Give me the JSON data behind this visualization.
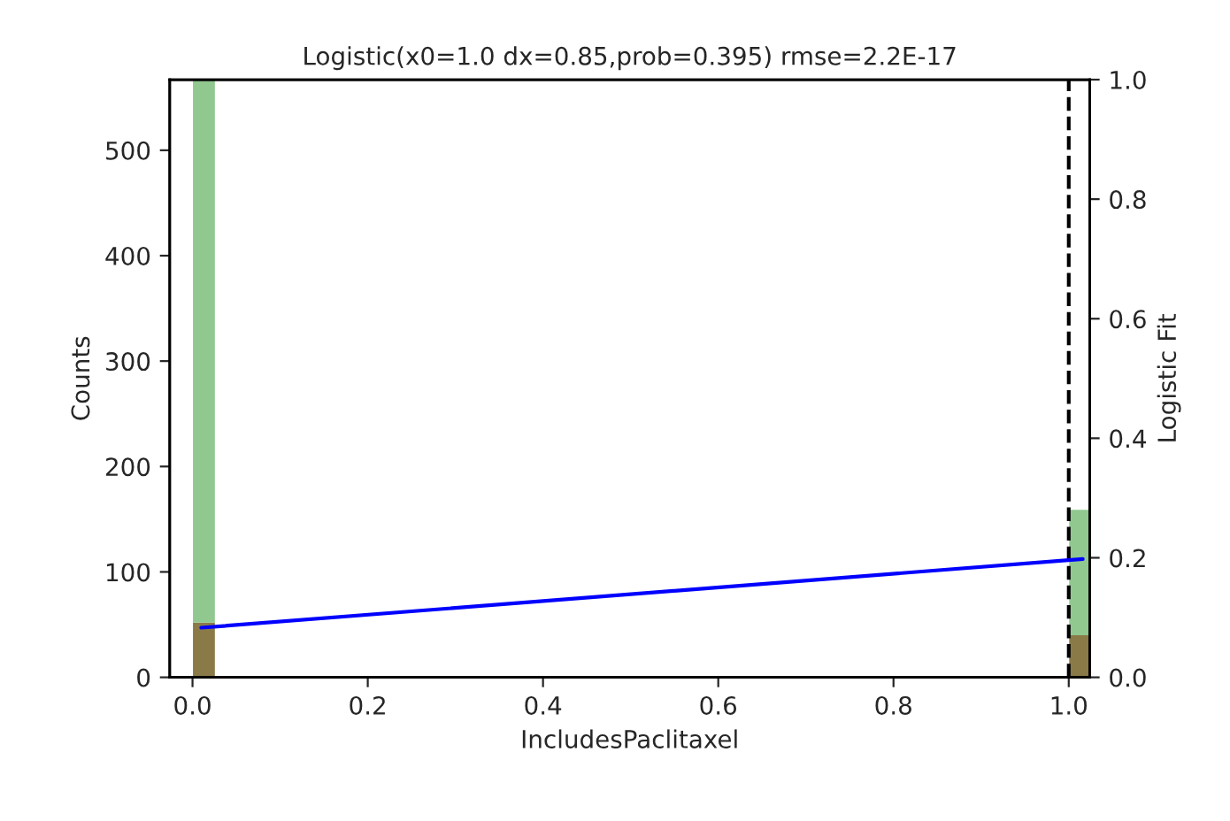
{
  "chart_data": {
    "type": "bar",
    "title": "Logistic(x0=1.0 dx=0.85,prob=0.395) rmse=2.2E-17",
    "xlabel": "IncludesPaclitaxel",
    "ylabel": "Counts",
    "y2label": "Logistic Fit",
    "x": [
      0.013,
      1.013
    ],
    "series": [
      {
        "color": "#8a7a48",
        "values": [
          52,
          40
        ]
      },
      {
        "color": "#90c890",
        "values": [
          515,
          119
        ]
      },
      {
        "type": "line",
        "axis": "y2",
        "color": "#0000ff",
        "x": [
          0.01,
          1.016
        ],
        "values": [
          0.083,
          0.198
        ]
      }
    ],
    "xlim": [
      -0.026,
      1.024
    ],
    "xticks": [
      {
        "value": 0,
        "label": "0.0"
      },
      0.2,
      0.4,
      0.6,
      0.8,
      {
        "value": 1,
        "label": "1.0"
      }
    ],
    "ylim": [
      0,
      567
    ],
    "yticks": [
      0,
      100,
      200,
      300,
      400,
      500
    ],
    "y2lim": [
      0,
      1
    ],
    "y2ticks": [
      {
        "value": 0,
        "label": "0.0"
      },
      0.2,
      0.4,
      0.6,
      0.8,
      {
        "value": 1,
        "label": "1.0"
      }
    ],
    "ref_lines": [
      {
        "axis": "x",
        "value": 1.0,
        "color": "#000000",
        "line_style": "dashed"
      }
    ],
    "stacked": true,
    "grid": false,
    "legend": false
  }
}
